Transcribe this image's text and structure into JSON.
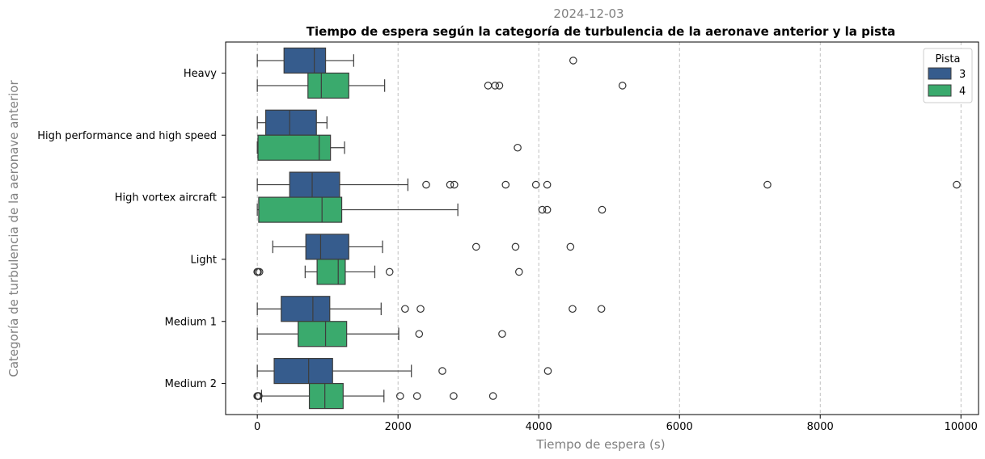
{
  "suptitle": "2024-12-03",
  "chart_data": {
    "type": "boxplot-horizontal",
    "title": "Tiempo de espera según la categoría de turbulencia de la aeronave anterior y la pista",
    "xlabel": "Tiempo de espera (s)",
    "ylabel": "Categoría de turbulencia de la aeronave anterior",
    "xlim": [
      -450,
      10250
    ],
    "xticks": [
      0,
      2000,
      4000,
      6000,
      8000,
      10000
    ],
    "xtick_labels": [
      "0",
      "2000",
      "4000",
      "6000",
      "8000",
      "10000"
    ],
    "grid": "x, dashed",
    "categories": [
      "Heavy",
      "High performance and high speed",
      "High vortex aircraft",
      "Light",
      "Medium 1",
      "Medium 2"
    ],
    "legend": {
      "title": "Pista",
      "placement": "top-right",
      "entries": [
        {
          "label": "3",
          "color": "#365c8d"
        },
        {
          "label": "4",
          "color": "#3aaa6d"
        }
      ]
    },
    "series": [
      {
        "name": "3",
        "color": "#365c8d",
        "boxes": [
          {
            "category": "Heavy",
            "whislo": 0,
            "q1": 380,
            "med": 810,
            "q3": 970,
            "whishi": 1370,
            "fliers": [
              4490
            ]
          },
          {
            "category": "High performance and high speed",
            "whislo": 0,
            "q1": 120,
            "med": 460,
            "q3": 840,
            "whishi": 990,
            "fliers": []
          },
          {
            "category": "High vortex aircraft",
            "whislo": 0,
            "q1": 460,
            "med": 780,
            "q3": 1170,
            "whishi": 2140,
            "fliers": [
              2400,
              2740,
              2800,
              3530,
              3960,
              4120,
              7250,
              9940
            ]
          },
          {
            "category": "Light",
            "whislo": 220,
            "q1": 690,
            "med": 900,
            "q3": 1300,
            "whishi": 1780,
            "fliers": [
              3110,
              3670,
              4450
            ]
          },
          {
            "category": "Medium 1",
            "whislo": 0,
            "q1": 340,
            "med": 790,
            "q3": 1030,
            "whishi": 1760,
            "fliers": [
              2100,
              2320,
              4480,
              4890
            ]
          },
          {
            "category": "Medium 2",
            "whislo": 0,
            "q1": 240,
            "med": 730,
            "q3": 1070,
            "whishi": 2190,
            "fliers": [
              2630,
              4130
            ]
          }
        ]
      },
      {
        "name": "4",
        "color": "#3aaa6d",
        "boxes": [
          {
            "category": "Heavy",
            "whislo": 0,
            "q1": 720,
            "med": 910,
            "q3": 1300,
            "whishi": 1810,
            "fliers": [
              3280,
              3380,
              3440,
              5190
            ]
          },
          {
            "category": "High performance and high speed",
            "whislo": 0,
            "q1": 10,
            "med": 880,
            "q3": 1040,
            "whishi": 1240,
            "fliers": [
              3700
            ]
          },
          {
            "category": "High vortex aircraft",
            "whislo": 0,
            "q1": 20,
            "med": 920,
            "q3": 1200,
            "whishi": 2850,
            "fliers": [
              4050,
              4120,
              4900
            ]
          },
          {
            "category": "Light",
            "whislo": 680,
            "q1": 850,
            "med": 1150,
            "q3": 1250,
            "whishi": 1670,
            "fliers": [
              0,
              10,
              30,
              1880,
              3720
            ]
          },
          {
            "category": "Medium 1",
            "whislo": 0,
            "q1": 580,
            "med": 970,
            "q3": 1270,
            "whishi": 2010,
            "fliers": [
              2300,
              3480
            ]
          },
          {
            "category": "Medium 2",
            "whislo": 60,
            "q1": 740,
            "med": 960,
            "q3": 1220,
            "whishi": 1800,
            "fliers": [
              0,
              10,
              20,
              2030,
              2270,
              2790,
              3350
            ]
          }
        ]
      }
    ]
  }
}
